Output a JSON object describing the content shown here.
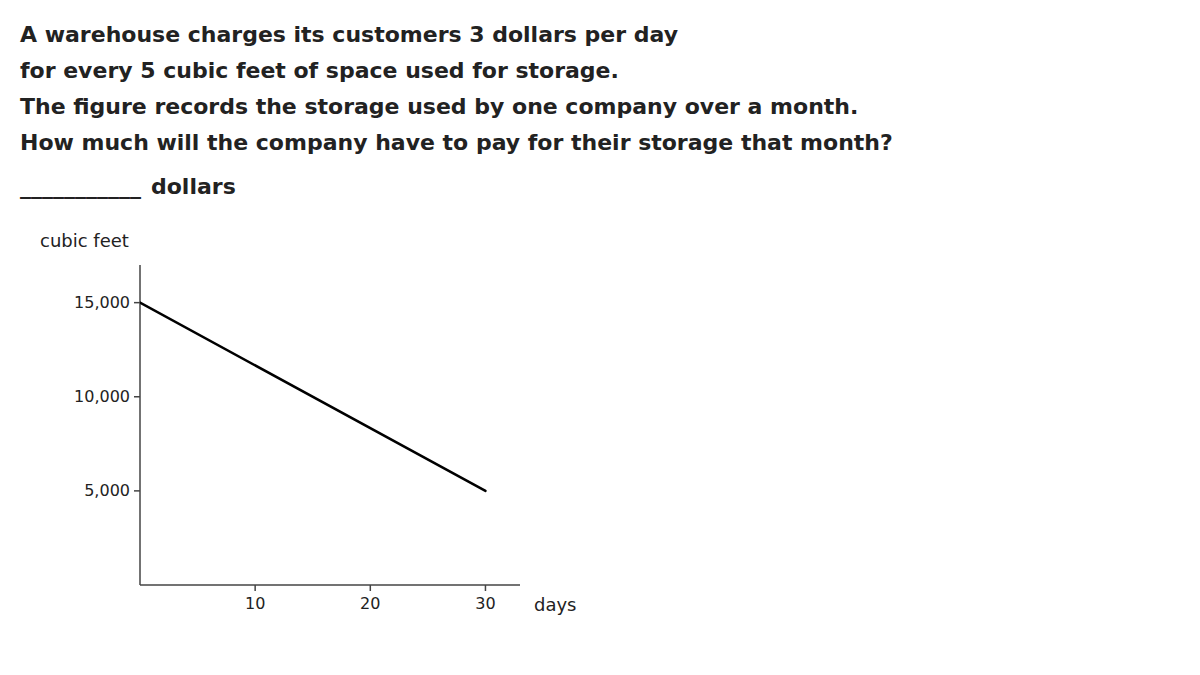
{
  "chart_data": {
    "type": "line",
    "annotations": [
      "A warehouse charges its customers 3 dollars per day",
      "for every 5 cubic feet of space used for storage.",
      "The figure records the storage used by one company over a month.",
      "How much will the company have to pay for their storage that month?",
      "___________",
      "dollars"
    ],
    "x_label": "days",
    "y_label": "cubic feet",
    "x": [
      0,
      30
    ],
    "values": [
      15000,
      5000
    ],
    "color": "#000000",
    "xlim": [
      0,
      33
    ],
    "ylim": [
      0,
      17000
    ],
    "xticks": [
      10,
      20,
      30
    ],
    "yticks": [
      {
        "value": 5000,
        "label": "5,000"
      },
      {
        "value": 10000,
        "label": "10,000"
      },
      {
        "value": 15000,
        "label": "15,000"
      }
    ],
    "grid": false
  }
}
